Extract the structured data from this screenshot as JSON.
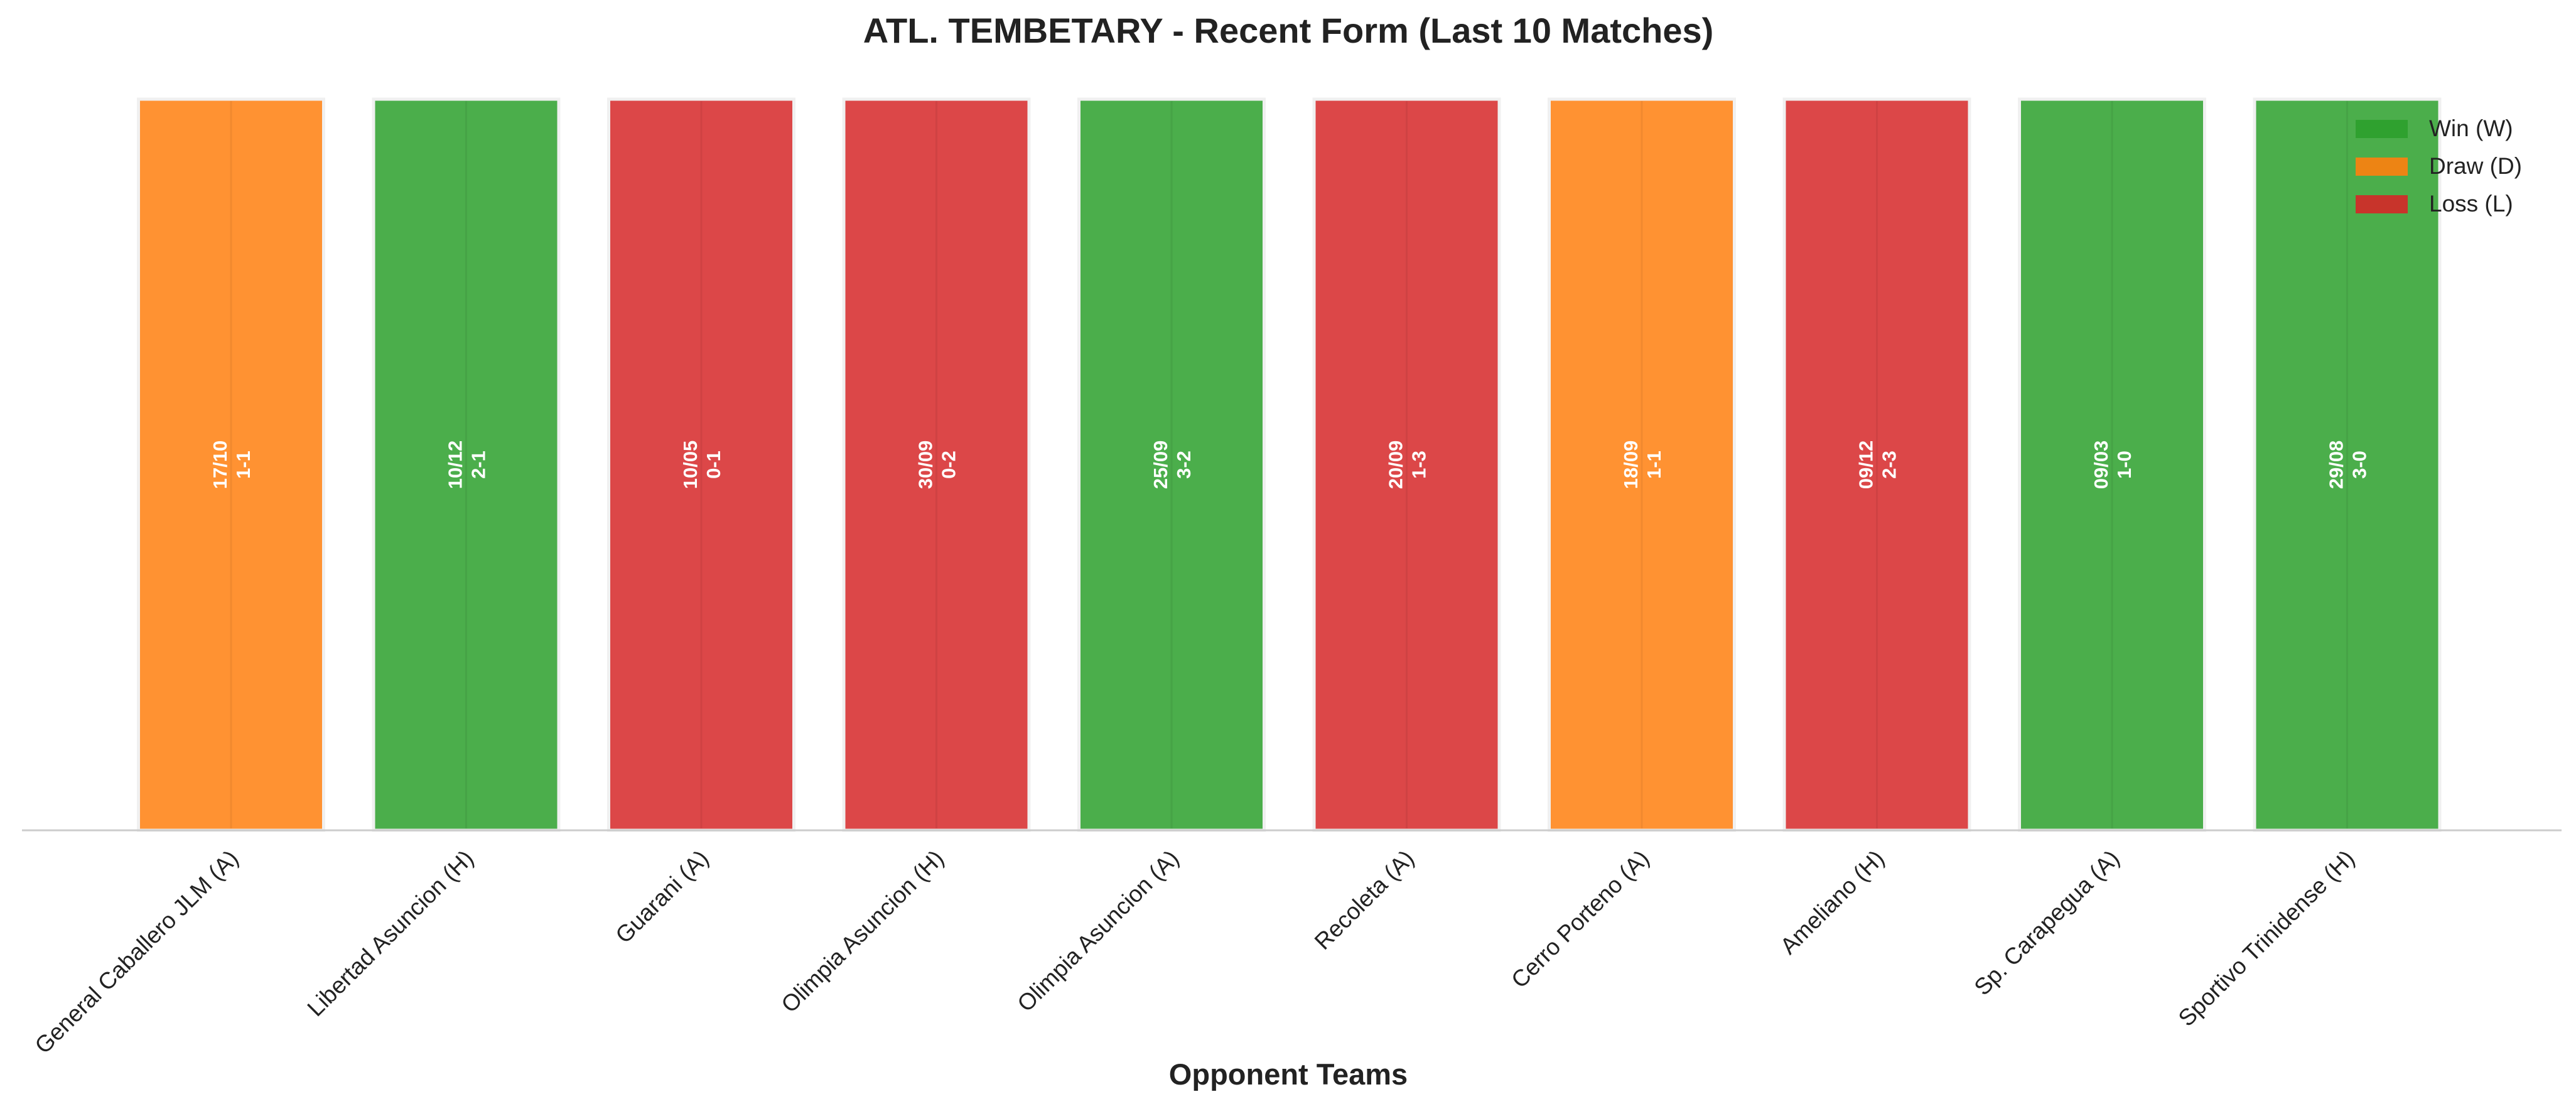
{
  "chart_data": {
    "type": "bar",
    "title": "ATL. TEMBETARY - Recent Form (Last 10 Matches)",
    "xlabel": "Opponent Teams",
    "ylabel": "",
    "ylim": [
      0,
      1
    ],
    "grid": false,
    "legend_position": "top-right",
    "categories": [
      "General Caballero JLM (A)",
      "Libertad Asuncion (H)",
      "Guarani (A)",
      "Olimpia Asuncion (H)",
      "Olimpia Asuncion (A)",
      "Recoleta (A)",
      "Cerro Porteno (A)",
      "Ameliano (H)",
      "Sp. Carapegua (A)",
      "Sportivo Trinidense (H)"
    ],
    "values": [
      1,
      1,
      1,
      1,
      1,
      1,
      1,
      1,
      1,
      1
    ],
    "results": [
      "D",
      "W",
      "L",
      "L",
      "W",
      "L",
      "D",
      "L",
      "W",
      "W"
    ],
    "dates": [
      "17/10",
      "10/12",
      "10/05",
      "30/09",
      "25/09",
      "20/09",
      "18/09",
      "09/12",
      "09/03",
      "29/08"
    ],
    "scores": [
      "1-1",
      "2-1",
      "0-1",
      "0-2",
      "3-2",
      "1-3",
      "1-1",
      "2-3",
      "1-0",
      "3-0"
    ],
    "legend": [
      {
        "key": "W",
        "label": "Win (W)",
        "color": "#2ca02c"
      },
      {
        "key": "D",
        "label": "Draw (D)",
        "color": "#ff7f0e"
      },
      {
        "key": "L",
        "label": "Loss (L)",
        "color": "#d62728"
      }
    ],
    "colors": {
      "W": "#2ca02c",
      "D": "#ff7f0e",
      "L": "#d62728",
      "text": "#222222",
      "axis": "#cccccc"
    }
  }
}
